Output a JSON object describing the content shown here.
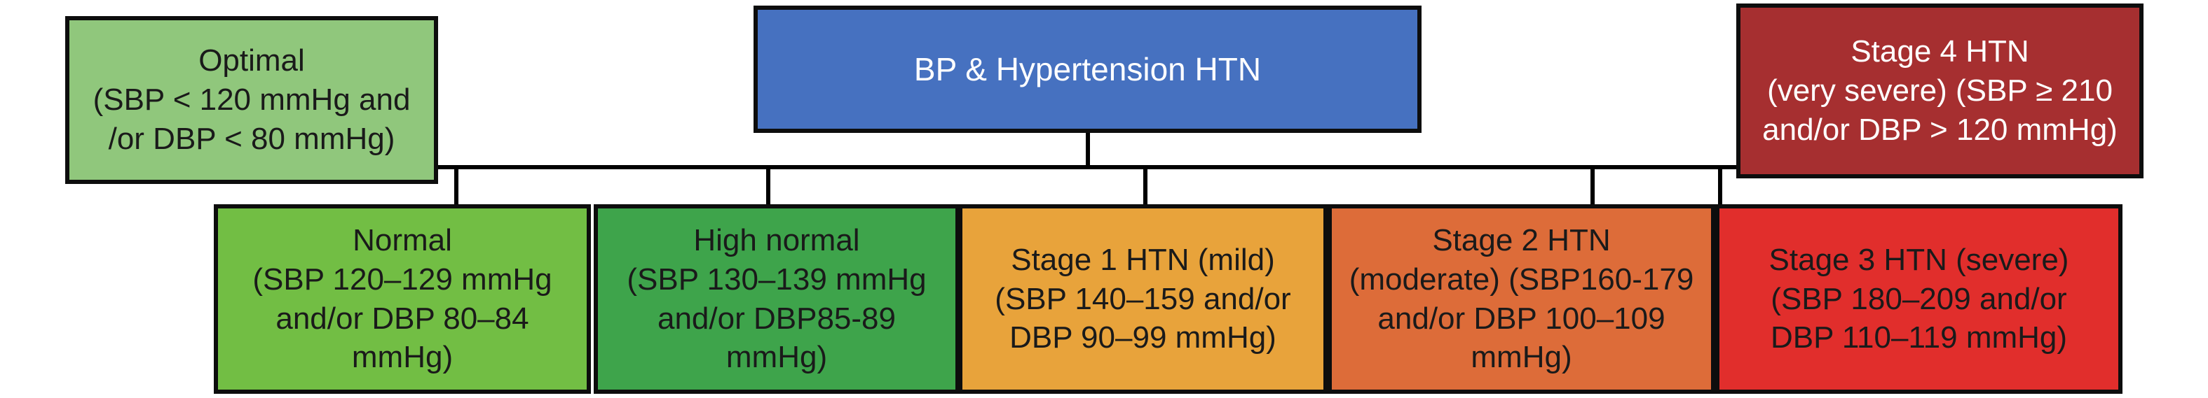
{
  "diagram": {
    "title": "BP & Hypertension HTN",
    "colors": {
      "background": "#ffffff",
      "border": "#0d0d0d",
      "connector": "#000000",
      "dark_text": "#1a1a1a",
      "light_text": "#ffffff"
    },
    "nodes": {
      "root": {
        "label": "BP & Hypertension HTN",
        "fill": "#4671c0",
        "text_color": "#ffffff"
      },
      "optimal": {
        "label": "Optimal\n(SBP < 120 mmHg and\n/or DBP < 80 mmHg)",
        "fill": "#90c77c",
        "text_color": "#1a1a1a"
      },
      "normal": {
        "label": "Normal\n(SBP 120–129 mmHg\nand/or DBP 80–84\nmmHg)",
        "fill": "#72be44",
        "text_color": "#1a1a1a"
      },
      "high_normal": {
        "label": "High normal\n(SBP 130–139 mmHg\nand/or DBP85-89\nmmHg)",
        "fill": "#3ea44b",
        "text_color": "#1a1a1a"
      },
      "stage1": {
        "label": "Stage 1 HTN (mild)\n(SBP 140–159 and/or\nDBP 90–99 mmHg)",
        "fill": "#e8a33b",
        "text_color": "#1a1a1a"
      },
      "stage2": {
        "label": "Stage 2 HTN\n(moderate) (SBP160-179\nand/or DBP 100–109\nmmHg)",
        "fill": "#dd6c39",
        "text_color": "#1a1a1a"
      },
      "stage3": {
        "label": "Stage 3 HTN (severe)\n(SBP 180–209 and/or\nDBP 110–119 mmHg)",
        "fill": "#e12e2c",
        "text_color": "#1a1a1a"
      },
      "stage4": {
        "label": "Stage 4 HTN\n(very severe) (SBP ≥ 210\nand/or DBP > 120 mmHg)",
        "fill": "#a62f30",
        "text_color": "#ffffff"
      }
    }
  }
}
